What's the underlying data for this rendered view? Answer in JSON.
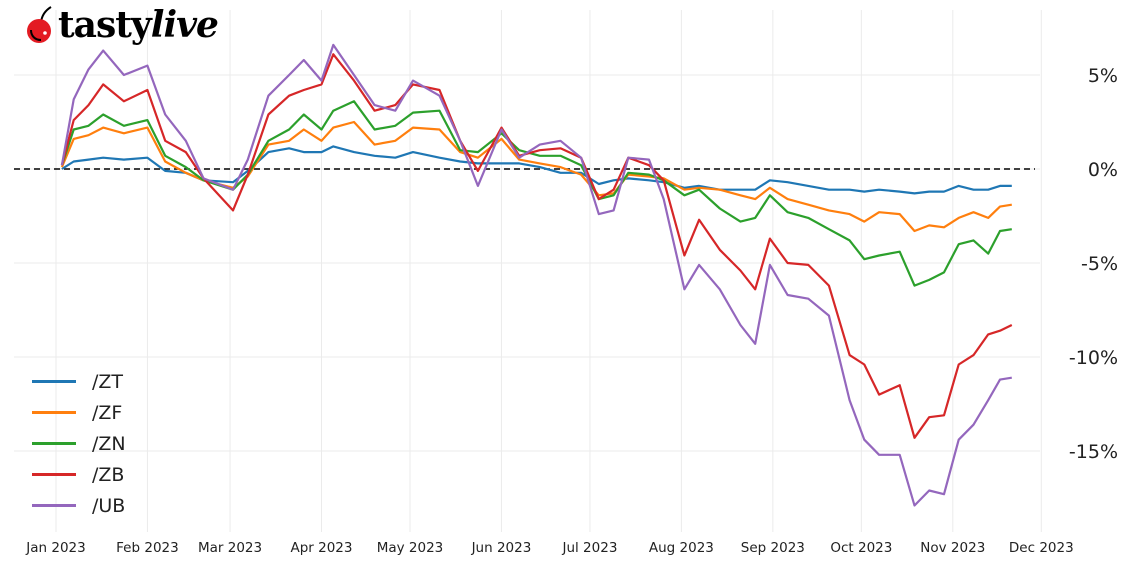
{
  "logo": {
    "text_a": "tasty",
    "text_b": "live",
    "icon": "cherry-icon"
  },
  "chart_data": {
    "type": "line",
    "title": "",
    "xlabel": "",
    "ylabel": "",
    "y_unit": "%",
    "ylim": [
      -19.5,
      8.2
    ],
    "xlim": [
      "2022-12-28",
      "2023-12-12"
    ],
    "grid": true,
    "legend_position": "bottom-left",
    "reference_line": {
      "y": 0,
      "style": "dashed",
      "color": "#000000"
    },
    "x_ticks": [
      "2023-01-01",
      "2023-02-01",
      "2023-03-01",
      "2023-04-01",
      "2023-05-01",
      "2023-06-01",
      "2023-07-01",
      "2023-08-01",
      "2023-09-01",
      "2023-10-01",
      "2023-11-01",
      "2023-12-01"
    ],
    "x_tick_labels": [
      "Jan 2023",
      "Feb 2023",
      "Mar 2023",
      "Apr 2023",
      "May 2023",
      "Jun 2023",
      "Jul 2023",
      "Aug 2023",
      "Sep 2023",
      "Oct 2023",
      "Nov 2023",
      "Dec 2023"
    ],
    "y_ticks": [
      5,
      0,
      -5,
      -10,
      -15
    ],
    "y_tick_labels": [
      "5%",
      "0%",
      "-5%",
      "-10%",
      "-15%"
    ],
    "x": [
      "2023-01-03",
      "2023-01-07",
      "2023-01-12",
      "2023-01-17",
      "2023-01-24",
      "2023-02-01",
      "2023-02-07",
      "2023-02-14",
      "2023-02-20",
      "2023-03-02",
      "2023-03-07",
      "2023-03-14",
      "2023-03-21",
      "2023-03-26",
      "2023-04-01",
      "2023-04-05",
      "2023-04-12",
      "2023-04-19",
      "2023-04-26",
      "2023-05-02",
      "2023-05-11",
      "2023-05-18",
      "2023-05-24",
      "2023-06-01",
      "2023-06-07",
      "2023-06-14",
      "2023-06-21",
      "2023-06-28",
      "2023-07-04",
      "2023-07-09",
      "2023-07-14",
      "2023-07-21",
      "2023-07-26",
      "2023-08-02",
      "2023-08-07",
      "2023-08-14",
      "2023-08-21",
      "2023-08-26",
      "2023-08-31",
      "2023-09-06",
      "2023-09-13",
      "2023-09-20",
      "2023-09-27",
      "2023-10-02",
      "2023-10-07",
      "2023-10-14",
      "2023-10-19",
      "2023-10-24",
      "2023-10-29",
      "2023-11-03",
      "2023-11-08",
      "2023-11-13",
      "2023-11-17",
      "2023-11-21"
    ],
    "series": [
      {
        "name": "/ZT",
        "color": "#1f77b4",
        "values": [
          0.0,
          0.4,
          0.5,
          0.6,
          0.5,
          0.6,
          -0.1,
          -0.2,
          -0.6,
          -0.7,
          -0.1,
          0.9,
          1.1,
          0.9,
          0.9,
          1.2,
          0.9,
          0.7,
          0.6,
          0.9,
          0.6,
          0.4,
          0.3,
          0.3,
          0.3,
          0.1,
          -0.2,
          -0.2,
          -0.8,
          -0.6,
          -0.5,
          -0.6,
          -0.7,
          -1.0,
          -0.9,
          -1.1,
          -1.1,
          -1.1,
          -0.6,
          -0.7,
          -0.9,
          -1.1,
          -1.1,
          -1.2,
          -1.1,
          -1.2,
          -1.3,
          -1.2,
          -1.2,
          -0.9,
          -1.1,
          -1.1,
          -0.9,
          -0.9
        ]
      },
      {
        "name": "/ZF",
        "color": "#ff7f0e",
        "values": [
          0.1,
          1.6,
          1.8,
          2.2,
          1.9,
          2.2,
          0.4,
          -0.2,
          -0.6,
          -1.0,
          -0.4,
          1.3,
          1.5,
          2.1,
          1.5,
          2.2,
          2.5,
          1.3,
          1.5,
          2.2,
          2.1,
          0.9,
          0.6,
          1.6,
          0.5,
          0.3,
          0.1,
          -0.3,
          -1.4,
          -1.3,
          -0.3,
          -0.4,
          -0.5,
          -1.1,
          -1.0,
          -1.1,
          -1.4,
          -1.6,
          -1.0,
          -1.6,
          -1.9,
          -2.2,
          -2.4,
          -2.8,
          -2.3,
          -2.4,
          -3.3,
          -3.0,
          -3.1,
          -2.6,
          -2.3,
          -2.6,
          -2.0,
          -1.9
        ]
      },
      {
        "name": "/ZN",
        "color": "#2ca02c",
        "values": [
          0.2,
          2.1,
          2.3,
          2.9,
          2.3,
          2.6,
          0.7,
          0.1,
          -0.6,
          -1.1,
          -0.3,
          1.5,
          2.1,
          2.9,
          2.1,
          3.1,
          3.6,
          2.1,
          2.3,
          3.0,
          3.1,
          1.0,
          0.9,
          1.9,
          1.0,
          0.7,
          0.7,
          0.2,
          -1.6,
          -1.4,
          -0.2,
          -0.3,
          -0.6,
          -1.4,
          -1.1,
          -2.1,
          -2.8,
          -2.6,
          -1.4,
          -2.3,
          -2.6,
          -3.2,
          -3.8,
          -4.8,
          -4.6,
          -4.4,
          -6.2,
          -5.9,
          -5.5,
          -4.0,
          -3.8,
          -4.5,
          -3.3,
          -3.2
        ]
      },
      {
        "name": "/ZB",
        "color": "#d62728",
        "values": [
          0.2,
          2.6,
          3.4,
          4.5,
          3.6,
          4.2,
          1.5,
          0.9,
          -0.5,
          -2.2,
          -0.3,
          2.9,
          3.9,
          4.2,
          4.5,
          6.1,
          4.7,
          3.1,
          3.4,
          4.5,
          4.2,
          1.5,
          -0.1,
          2.2,
          0.7,
          1.0,
          1.1,
          0.6,
          -1.6,
          -1.1,
          0.6,
          0.2,
          -0.6,
          -4.6,
          -2.7,
          -4.3,
          -5.4,
          -6.4,
          -3.7,
          -5.0,
          -5.1,
          -6.2,
          -9.9,
          -10.4,
          -12.0,
          -11.5,
          -14.3,
          -13.2,
          -13.1,
          -10.4,
          -9.9,
          -8.8,
          -8.6,
          -8.3
        ]
      },
      {
        "name": "/UB",
        "color": "#9467bd",
        "values": [
          0.2,
          3.7,
          5.3,
          6.3,
          5.0,
          5.5,
          2.9,
          1.5,
          -0.5,
          -1.1,
          0.5,
          3.9,
          5.0,
          5.8,
          4.7,
          6.6,
          5.0,
          3.4,
          3.1,
          4.7,
          3.9,
          1.5,
          -0.9,
          2.1,
          0.6,
          1.3,
          1.5,
          0.6,
          -2.4,
          -2.2,
          0.6,
          0.5,
          -1.6,
          -6.4,
          -5.1,
          -6.4,
          -8.3,
          -9.3,
          -5.1,
          -6.7,
          -6.9,
          -7.8,
          -12.3,
          -14.4,
          -15.2,
          -15.2,
          -17.9,
          -17.1,
          -17.3,
          -14.4,
          -13.6,
          -12.3,
          -11.2,
          -11.1
        ]
      }
    ]
  }
}
